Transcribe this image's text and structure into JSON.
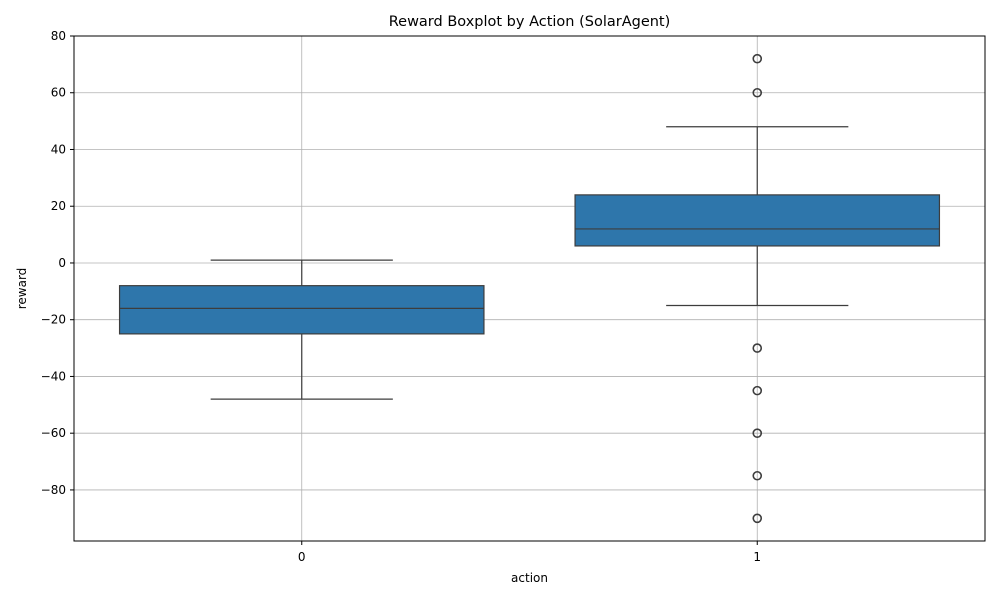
{
  "chart_data": {
    "type": "boxplot",
    "title": "Reward Boxplot by Action (SolarAgent)",
    "xlabel": "action",
    "ylabel": "reward",
    "categories": [
      "0",
      "1"
    ],
    "ylim": [
      -98,
      80
    ],
    "yticks": [
      80,
      60,
      40,
      20,
      0,
      -20,
      -40,
      -60,
      -80
    ],
    "ytick_labels": [
      "80",
      "60",
      "40",
      "20",
      "0",
      "−20",
      "−40",
      "−60",
      "−80"
    ],
    "grid": true,
    "color": "#2e76ab",
    "boxes": [
      {
        "category": "0",
        "whisker_low": -48,
        "q1": -25,
        "median": -16,
        "q3": -8,
        "whisker_high": 1,
        "outliers": []
      },
      {
        "category": "1",
        "whisker_low": -15,
        "q1": 6,
        "median": 12,
        "q3": 24,
        "whisker_high": 48,
        "outliers": [
          72,
          60,
          -30,
          -45,
          -60,
          -75,
          -90
        ]
      }
    ]
  }
}
